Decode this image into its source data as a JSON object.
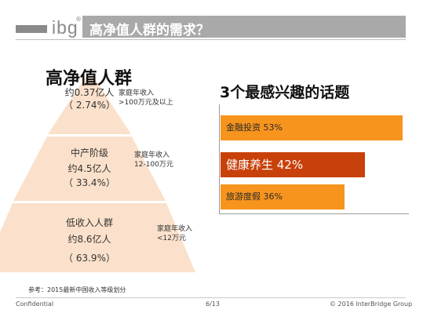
{
  "header": {
    "logo_text": "ibg",
    "logo_mark": "®",
    "title": "高净值人群的需求？"
  },
  "pyramid": {
    "title": "高净值人群",
    "tiers": [
      {
        "name": "约0.37亿人",
        "share": "（ 2.74%）",
        "note_label": "家庭年收入",
        "note_value": ">100万元及以上",
        "color": "#fbe1cb"
      },
      {
        "name": "中产阶级",
        "count": "约4.5亿人",
        "share": "（ 33.4%）",
        "note_label": "家庭年收入",
        "note_value": "12-100万元",
        "color": "#fbe1cb"
      },
      {
        "name": "低收入人群",
        "count": "约8.6亿人",
        "share": "（ 63.9%）",
        "note_label": "家庭年收入",
        "note_value": "<12万元",
        "color": "#fbe1cb"
      }
    ]
  },
  "topics": {
    "title": "3个最感兴趣的话题",
    "items": [
      {
        "label": "金融投资 53%",
        "value": 53,
        "color": "#f7941d",
        "highlight": false
      },
      {
        "label": "健康养生 42%",
        "value": 42,
        "color": "#c8410a",
        "highlight": true
      },
      {
        "label": "旅游度假 36%",
        "value": 36,
        "color": "#f7941d",
        "highlight": false
      }
    ]
  },
  "footnote": "参考：2015最新中国收入等级划分",
  "footer": {
    "left": "Confidential",
    "page": "6/13",
    "copyright": "© 2016 InterBridge Group"
  }
}
